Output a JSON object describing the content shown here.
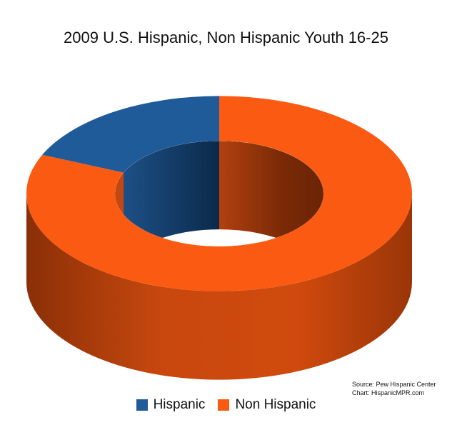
{
  "chart_data": {
    "type": "pie",
    "title": "2009 U.S. Hispanic, Non Hispanic Youth 16-25",
    "style": "3d-donut",
    "series": [
      {
        "name": "Hispanic",
        "value": 18.5,
        "color": "#1f5a99"
      },
      {
        "name": "Non Hispanic",
        "value": 81.5,
        "color": "#fb5a12"
      }
    ],
    "legend_position": "bottom",
    "source_lines": [
      "Source: Pew Hispanic Center",
      "Chart: HispanicMPR.com"
    ]
  }
}
